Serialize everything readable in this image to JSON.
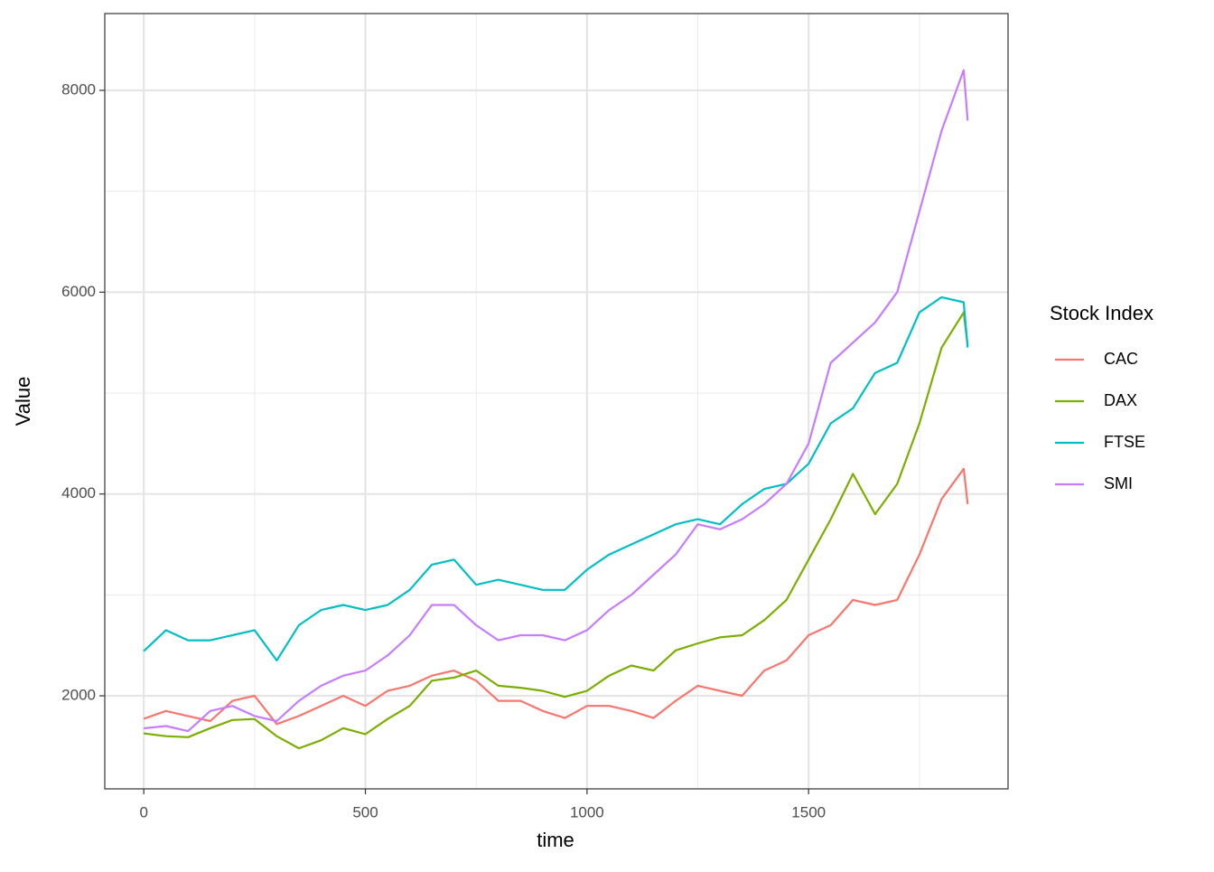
{
  "chart_data": {
    "type": "line",
    "x_label": "time",
    "y_label": "Value",
    "legend_title": "Stock Index",
    "legend_position": "right",
    "x": [
      0,
      50,
      100,
      150,
      200,
      250,
      300,
      350,
      400,
      450,
      500,
      550,
      600,
      650,
      700,
      750,
      800,
      850,
      900,
      950,
      1000,
      1050,
      1100,
      1150,
      1200,
      1250,
      1300,
      1350,
      1400,
      1450,
      1500,
      1550,
      1600,
      1650,
      1700,
      1750,
      1800,
      1850,
      1859
    ],
    "series": [
      {
        "name": "CAC",
        "color": "#F8766D",
        "values": [
          1773,
          1850,
          1800,
          1750,
          1950,
          2000,
          1720,
          1800,
          1900,
          2000,
          1900,
          2050,
          2100,
          2200,
          2250,
          2150,
          1950,
          1950,
          1850,
          1780,
          1900,
          1900,
          1850,
          1780,
          1950,
          2100,
          2050,
          2000,
          2250,
          2350,
          2600,
          2700,
          2950,
          2900,
          2950,
          3400,
          3950,
          4250,
          3900
        ]
      },
      {
        "name": "DAX",
        "color": "#7CAE00",
        "values": [
          1628,
          1600,
          1590,
          1680,
          1760,
          1770,
          1600,
          1480,
          1560,
          1680,
          1620,
          1770,
          1900,
          2150,
          2180,
          2250,
          2100,
          2080,
          2050,
          1990,
          2050,
          2200,
          2300,
          2250,
          2450,
          2520,
          2580,
          2600,
          2750,
          2950,
          3350,
          3750,
          4200,
          3800,
          4100,
          4700,
          5450,
          5800,
          5473
        ]
      },
      {
        "name": "FTSE",
        "color": "#00BFC4",
        "values": [
          2443,
          2650,
          2550,
          2550,
          2600,
          2650,
          2350,
          2700,
          2850,
          2900,
          2850,
          2900,
          3050,
          3300,
          3350,
          3100,
          3150,
          3100,
          3050,
          3050,
          3250,
          3400,
          3500,
          3600,
          3700,
          3750,
          3700,
          3900,
          4050,
          4100,
          4300,
          4700,
          4850,
          5200,
          5300,
          5800,
          5950,
          5900,
          5451
        ]
      },
      {
        "name": "SMI",
        "color": "#C77CFF",
        "values": [
          1678,
          1700,
          1650,
          1850,
          1900,
          1800,
          1750,
          1950,
          2100,
          2200,
          2250,
          2400,
          2600,
          2900,
          2900,
          2700,
          2550,
          2600,
          2600,
          2550,
          2650,
          2850,
          3000,
          3200,
          3400,
          3700,
          3650,
          3750,
          3900,
          4100,
          4500,
          5300,
          5500,
          5700,
          6000,
          6800,
          7600,
          8200,
          7700
        ]
      }
    ],
    "xlim": [
      -88,
      1950
    ],
    "ylim": [
      1078,
      8761
    ],
    "xticks": [
      0,
      500,
      1000,
      1500
    ],
    "yticks": [
      2000,
      4000,
      6000,
      8000
    ],
    "x_minor_ticks": [
      250,
      750,
      1250,
      1750
    ],
    "y_minor_ticks": [
      3000,
      5000,
      7000
    ],
    "grid": true
  }
}
